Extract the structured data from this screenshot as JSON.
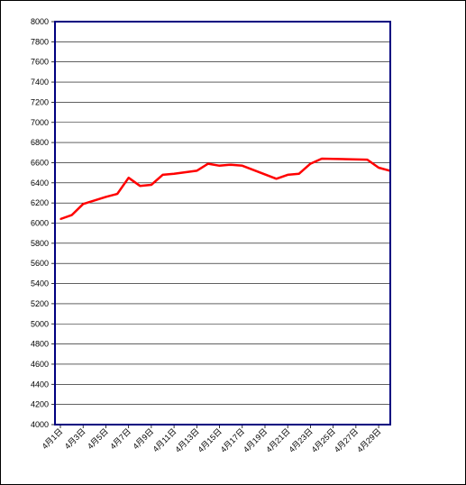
{
  "chart_data": {
    "type": "line",
    "title": "",
    "xlabel": "",
    "ylabel": "",
    "ylim": [
      4000,
      8000
    ],
    "y_ticks": [
      4000,
      4200,
      4400,
      4600,
      4800,
      5000,
      5200,
      5400,
      5600,
      5800,
      6000,
      6200,
      6400,
      6600,
      6800,
      7000,
      7200,
      7400,
      7600,
      7800,
      8000
    ],
    "x_tick_labels": [
      "4月1日",
      "4月3日",
      "4月5日",
      "4月7日",
      "4月9日",
      "4月11日",
      "4月13日",
      "4月15日",
      "4月17日",
      "4月19日",
      "4月21日",
      "4月23日",
      "4月25日",
      "4月27日",
      "4月29日"
    ],
    "grid": true,
    "legend": "none",
    "colors": {
      "series": "#ff0000",
      "plot_border": "#000080",
      "grid": "#000000"
    },
    "series": [
      {
        "x": [
          1,
          2,
          3,
          5,
          6,
          7,
          8,
          9,
          10,
          11,
          13,
          14,
          15,
          16,
          17,
          20,
          21,
          22,
          23,
          24,
          28,
          29,
          30
        ],
        "values": [
          6040,
          6080,
          6190,
          6260,
          6290,
          6450,
          6370,
          6380,
          6480,
          6490,
          6520,
          6590,
          6570,
          6580,
          6570,
          6440,
          6480,
          6490,
          6590,
          6640,
          6630,
          6550,
          6520
        ]
      }
    ]
  }
}
